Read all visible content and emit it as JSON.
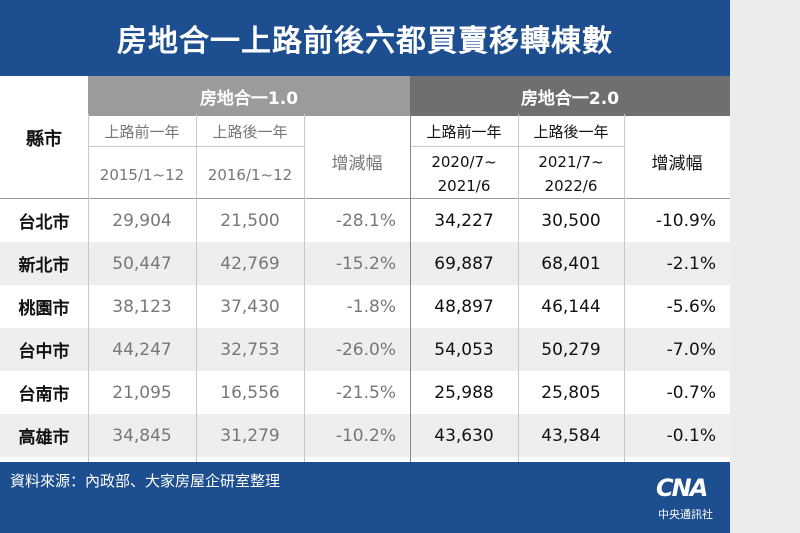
{
  "title": "房地合一上路前後六都買賣移轉棟數",
  "header": {
    "county_label": "縣市",
    "group1": "房地合一1.0",
    "group2": "房地合一2.0",
    "g1_before": "上路前一年",
    "g1_after": "上路後一年",
    "g1_before_period": "2015/1~12",
    "g1_after_period": "2016/1~12",
    "g1_change": "增減幅",
    "g2_before": "上路前一年",
    "g2_after": "上路後一年",
    "g2_before_period_1": "2020/7~",
    "g2_before_period_2": "2021/6",
    "g2_after_period_1": "2021/7~",
    "g2_after_period_2": "2022/6",
    "g2_change": "增減幅"
  },
  "rows": [
    {
      "county": "台北市",
      "g1_before": "29,904",
      "g1_after": "21,500",
      "g1_change": "-28.1%",
      "g2_before": "34,227",
      "g2_after": "30,500",
      "g2_change": "-10.9%"
    },
    {
      "county": "新北市",
      "g1_before": "50,447",
      "g1_after": "42,769",
      "g1_change": "-15.2%",
      "g2_before": "69,887",
      "g2_after": "68,401",
      "g2_change": "-2.1%"
    },
    {
      "county": "桃園市",
      "g1_before": "38,123",
      "g1_after": "37,430",
      "g1_change": "-1.8%",
      "g2_before": "48,897",
      "g2_after": "46,144",
      "g2_change": "-5.6%"
    },
    {
      "county": "台中市",
      "g1_before": "44,247",
      "g1_after": "32,753",
      "g1_change": "-26.0%",
      "g2_before": "54,053",
      "g2_after": "50,279",
      "g2_change": "-7.0%"
    },
    {
      "county": "台南市",
      "g1_before": "21,095",
      "g1_after": "16,556",
      "g1_change": "-21.5%",
      "g2_before": "25,988",
      "g2_after": "25,805",
      "g2_change": "-0.7%"
    },
    {
      "county": "高雄市",
      "g1_before": "34,845",
      "g1_after": "31,279",
      "g1_change": "-10.2%",
      "g2_before": "43,630",
      "g2_after": "43,584",
      "g2_change": "-0.1%"
    }
  ],
  "footer": {
    "source": "資料來源：內政部、大家房屋企研室整理",
    "logo_text": "CNA",
    "logo_name": "中央通訊社"
  }
}
